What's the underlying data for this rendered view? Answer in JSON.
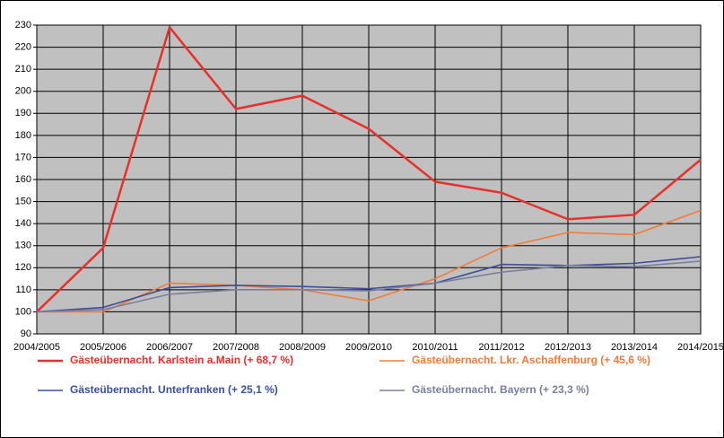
{
  "chart_data": {
    "type": "line",
    "categories": [
      "2004/2005",
      "2005/2006",
      "2006/2007",
      "2007/2008",
      "2008/2009",
      "2009/2010",
      "2010/2011",
      "2011/2012",
      "2012/2013",
      "2013/2014",
      "2014/2015"
    ],
    "series": [
      {
        "name": "Gästeübernacht. Karlstein a.Main (+ 68,7 %)",
        "color": "#e8302a",
        "values": [
          100,
          129,
          229,
          192,
          198,
          183,
          159,
          154,
          142,
          144,
          169
        ]
      },
      {
        "name": "Gästeübernacht. Lkr. Aschaffenburg (+ 45,6 %)",
        "color": "#f07c3a",
        "values": [
          100,
          100,
          113,
          112,
          110,
          105,
          115,
          129,
          136,
          135,
          146
        ]
      },
      {
        "name": "Gästeübernacht. Unterfranken (+ 25,1 %)",
        "color": "#3b4fa0",
        "values": [
          100,
          102,
          111,
          112,
          111.5,
          110.5,
          113,
          121.5,
          121,
          122,
          125
        ]
      },
      {
        "name": "Gästeübernacht. Bayern (+ 23,3 %)",
        "color": "#7a7f9e",
        "values": [
          100,
          101,
          108,
          110,
          110,
          109.5,
          113,
          118,
          121,
          120.5,
          123
        ]
      }
    ],
    "ylim": [
      90,
      230
    ],
    "yticks": [
      90,
      100,
      110,
      120,
      130,
      140,
      150,
      160,
      170,
      180,
      190,
      200,
      210,
      220,
      230
    ],
    "grid": true,
    "plot_background": "#c0c0c0"
  }
}
